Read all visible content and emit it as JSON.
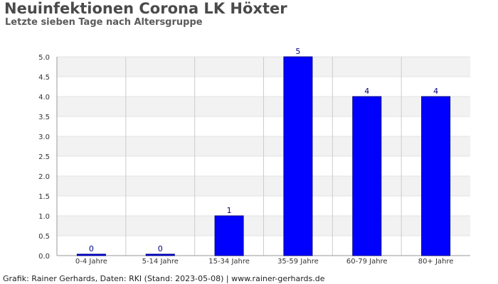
{
  "header": {
    "title": "Neuinfektionen Corona LK Höxter",
    "subtitle": "Letzte sieben Tage nach Altersgruppe"
  },
  "footer": {
    "credit": "Grafik: Rainer Gerhards, Daten: RKI (Stand: 2023-05-08) | www.rainer-gerhards.de"
  },
  "colors": {
    "bar": "#0000ff",
    "bar_outline": "#000080",
    "band_shade": "#f2f2f2",
    "grid": "#cccccc"
  },
  "chart_data": {
    "type": "bar",
    "title": "Neuinfektionen Corona LK Höxter",
    "subtitle": "Letzte sieben Tage nach Altersgruppe",
    "xlabel": "",
    "ylabel": "",
    "categories": [
      "0-4 Jahre",
      "5-14 Jahre",
      "15-34 Jahre",
      "35-59 Jahre",
      "60-79 Jahre",
      "80+ Jahre"
    ],
    "values": [
      0,
      0,
      1,
      5,
      4,
      4
    ],
    "ylim": [
      0,
      5
    ],
    "yticks": [
      "0.0",
      "0.5",
      "1.0",
      "1.5",
      "2.0",
      "2.5",
      "3.0",
      "3.5",
      "4.0",
      "4.5",
      "5.0"
    ],
    "grid": true,
    "legend": "none"
  }
}
